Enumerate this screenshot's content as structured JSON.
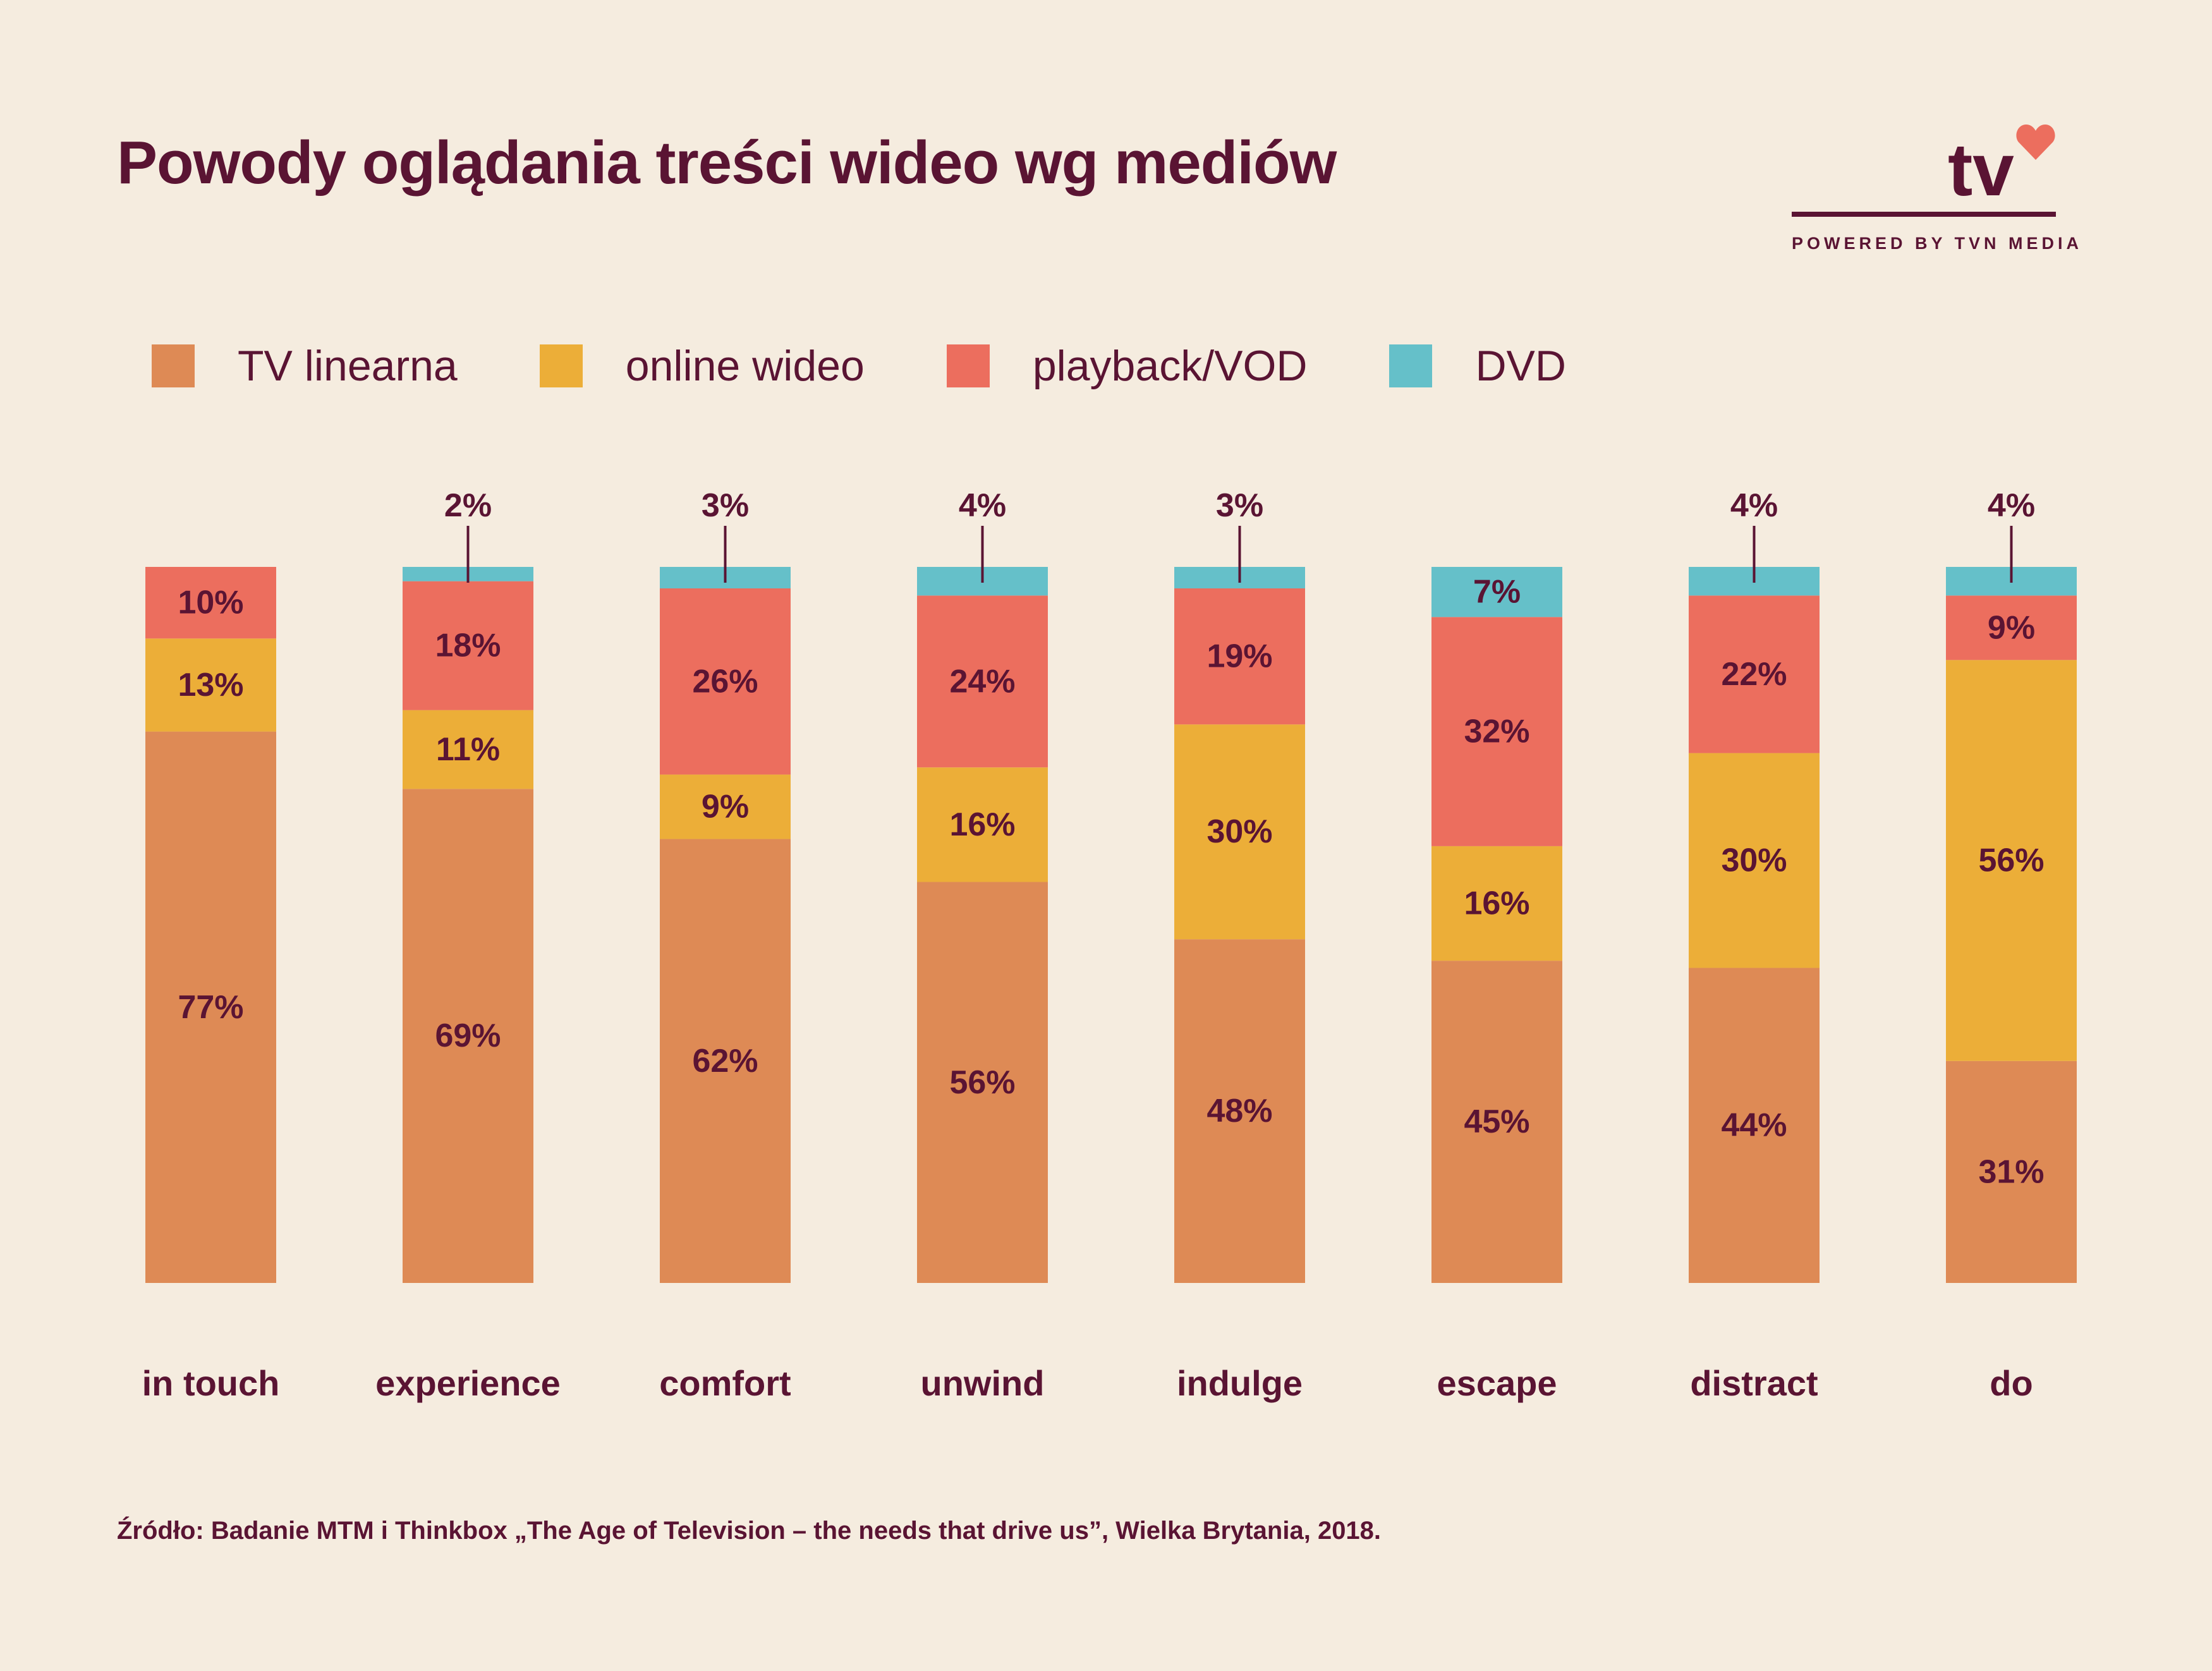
{
  "title": "Powody oglądania treści wideo wg mediów",
  "logo": {
    "text": "tv",
    "tagline": "POWERED BY TVN MEDIA",
    "icon": "heart-icon"
  },
  "source": "Źródło: Badanie MTM i Thinkbox „The Age of Television – the needs that drive us”, Wielka Brytania, 2018.",
  "colors": {
    "tv_linearna": "#de8a55",
    "online_wideo": "#ecae38",
    "playback_vod": "#ec6e5e",
    "dvd": "#65c0c9",
    "text": "#5a1433",
    "background": "#f5ecdf"
  },
  "legend": [
    {
      "label": "TV linearna",
      "color": "#de8a55"
    },
    {
      "label": "online wideo",
      "color": "#ecae38"
    },
    {
      "label": "playback/VOD",
      "color": "#ec6e5e"
    },
    {
      "label": "DVD",
      "color": "#65c0c9"
    }
  ],
  "chart_data": {
    "type": "bar",
    "stacked": true,
    "normalized_to": 100,
    "unit": "%",
    "categories": [
      "in touch",
      "experience",
      "comfort",
      "unwind",
      "indulge",
      "escape",
      "distract",
      "do"
    ],
    "series": [
      {
        "name": "TV linearna",
        "color": "#de8a55",
        "values": [
          77,
          69,
          62,
          56,
          48,
          45,
          44,
          31
        ]
      },
      {
        "name": "online wideo",
        "color": "#ecae38",
        "values": [
          13,
          11,
          9,
          16,
          30,
          16,
          30,
          56
        ]
      },
      {
        "name": "playback/VOD",
        "color": "#ec6e5e",
        "values": [
          10,
          18,
          26,
          24,
          19,
          32,
          22,
          9
        ]
      },
      {
        "name": "DVD",
        "color": "#65c0c9",
        "values": [
          0,
          2,
          3,
          4,
          3,
          7,
          4,
          4
        ]
      }
    ],
    "value_labels": [
      [
        "77%",
        "69%",
        "62%",
        "56%",
        "48%",
        "45%",
        "44%",
        "31%"
      ],
      [
        "13%",
        "11%",
        "9%",
        "16%",
        "30%",
        "16%",
        "30%",
        "56%"
      ],
      [
        "10%",
        "18%",
        "26%",
        "24%",
        "19%",
        "32%",
        "22%",
        "9%"
      ],
      [
        "",
        "2%",
        "3%",
        "4%",
        "3%",
        "7%",
        "4%",
        "4%"
      ]
    ],
    "dvd_labels_outside": [
      false,
      true,
      true,
      true,
      true,
      false,
      true,
      true
    ],
    "legend_position": "top-left",
    "grid": false,
    "title": "Powody oglądania treści wideo wg mediów"
  }
}
